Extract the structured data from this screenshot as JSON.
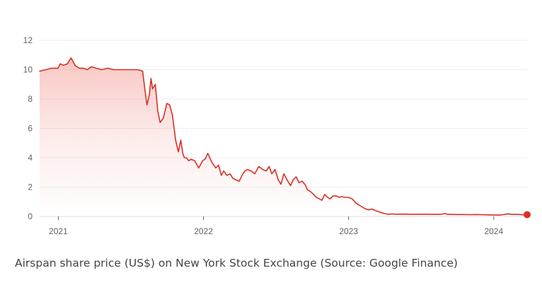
{
  "caption": "Airspan share price (US$) on New York Stock Exchange (Source: Google Finance)",
  "colors": {
    "line": "#d93025",
    "fill_top": "#f4a9a4",
    "gridline": "#ededed",
    "axis": "#dadce0",
    "tick_text": "#5f6368",
    "caption_text": "#444444"
  },
  "chart_data": {
    "type": "area",
    "title": "",
    "xlabel": "",
    "ylabel": "",
    "ylim": [
      0,
      12
    ],
    "yticks": [
      0,
      2,
      4,
      6,
      8,
      10,
      12
    ],
    "ytick_labels": [
      "0",
      "2",
      "4",
      "6",
      "8",
      "10",
      "12"
    ],
    "xlim": [
      "2020-11-15",
      "2024-03-25"
    ],
    "xticks": [
      "2021-01-01",
      "2022-01-01",
      "2023-01-01",
      "2024-01-01"
    ],
    "xtick_labels": [
      "2021",
      "2022",
      "2023",
      "2024"
    ],
    "grid": true,
    "end_marker": true,
    "series": [
      {
        "x": [
          "2020-11-15",
          "2020-12-01",
          "2020-12-15",
          "2020-12-31",
          "2021-01-06",
          "2021-01-14",
          "2021-01-24",
          "2021-02-02",
          "2021-02-12",
          "2021-02-22",
          "2021-03-05",
          "2021-03-15",
          "2021-03-25",
          "2021-04-06",
          "2021-04-20",
          "2021-05-05",
          "2021-05-20",
          "2021-06-05",
          "2021-06-20",
          "2021-07-05",
          "2021-07-20",
          "2021-08-01",
          "2021-08-07",
          "2021-08-12",
          "2021-08-18",
          "2021-08-22",
          "2021-08-26",
          "2021-09-02",
          "2021-09-08",
          "2021-09-14",
          "2021-09-22",
          "2021-10-01",
          "2021-10-08",
          "2021-10-15",
          "2021-10-23",
          "2021-10-30",
          "2021-11-05",
          "2021-11-10",
          "2021-11-14",
          "2021-11-19",
          "2021-11-25",
          "2021-12-01",
          "2021-12-10",
          "2021-12-20",
          "2021-12-30",
          "2022-01-05",
          "2022-01-12",
          "2022-01-22",
          "2022-02-01",
          "2022-02-08",
          "2022-02-15",
          "2022-02-21",
          "2022-03-01",
          "2022-03-09",
          "2022-03-16",
          "2022-03-23",
          "2022-04-01",
          "2022-04-08",
          "2022-04-15",
          "2022-04-22",
          "2022-05-01",
          "2022-05-10",
          "2022-05-20",
          "2022-05-30",
          "2022-06-08",
          "2022-06-15",
          "2022-06-22",
          "2022-06-30",
          "2022-07-08",
          "2022-07-15",
          "2022-07-22",
          "2022-07-30",
          "2022-08-08",
          "2022-08-15",
          "2022-08-22",
          "2022-08-29",
          "2022-09-06",
          "2022-09-13",
          "2022-09-20",
          "2022-09-27",
          "2022-10-05",
          "2022-10-12",
          "2022-10-19",
          "2022-10-26",
          "2022-11-02",
          "2022-11-09",
          "2022-11-16",
          "2022-11-23",
          "2022-12-01",
          "2022-12-08",
          "2022-12-15",
          "2022-12-22",
          "2022-12-31",
          "2023-01-10",
          "2023-01-20",
          "2023-02-01",
          "2023-02-10",
          "2023-02-20",
          "2023-03-01",
          "2023-03-10",
          "2023-03-20",
          "2023-04-01",
          "2023-04-10",
          "2023-04-20",
          "2023-05-01",
          "2023-05-15",
          "2023-06-01",
          "2023-06-15",
          "2023-07-01",
          "2023-07-15",
          "2023-08-01",
          "2023-08-20",
          "2023-09-01",
          "2023-09-05",
          "2023-09-15",
          "2023-10-01",
          "2023-10-15",
          "2023-11-01",
          "2023-11-15",
          "2023-12-01",
          "2023-12-15",
          "2024-01-01",
          "2024-01-15",
          "2024-01-25",
          "2024-02-05",
          "2024-02-15",
          "2024-03-01",
          "2024-03-15",
          "2024-03-25"
        ],
        "y": [
          9.9,
          10.0,
          10.1,
          10.1,
          10.4,
          10.3,
          10.4,
          10.8,
          10.3,
          10.1,
          10.1,
          10.0,
          10.2,
          10.1,
          10.0,
          10.1,
          10.0,
          10.0,
          10.0,
          10.0,
          10.0,
          9.9,
          8.6,
          7.6,
          8.3,
          9.4,
          8.7,
          9.0,
          7.2,
          6.4,
          6.7,
          7.7,
          7.6,
          6.9,
          5.2,
          4.4,
          5.2,
          4.3,
          4.0,
          4.0,
          3.8,
          3.9,
          3.8,
          3.3,
          3.8,
          3.9,
          4.3,
          3.7,
          3.3,
          3.5,
          2.8,
          3.1,
          2.8,
          2.9,
          2.6,
          2.5,
          2.4,
          2.8,
          3.1,
          3.2,
          3.1,
          2.9,
          3.4,
          3.2,
          3.1,
          3.4,
          2.9,
          3.2,
          2.5,
          2.2,
          2.9,
          2.5,
          2.1,
          2.5,
          2.7,
          2.3,
          2.4,
          2.2,
          1.8,
          1.7,
          1.5,
          1.3,
          1.2,
          1.1,
          1.5,
          1.3,
          1.2,
          1.4,
          1.4,
          1.3,
          1.35,
          1.3,
          1.3,
          1.2,
          0.9,
          0.7,
          0.55,
          0.45,
          0.5,
          0.4,
          0.3,
          0.2,
          0.15,
          0.17,
          0.15,
          0.16,
          0.15,
          0.15,
          0.15,
          0.15,
          0.14,
          0.14,
          0.2,
          0.15,
          0.14,
          0.13,
          0.13,
          0.12,
          0.13,
          0.12,
          0.11,
          0.1,
          0.09,
          0.12,
          0.18,
          0.14,
          0.14,
          0.11,
          0.12
        ]
      }
    ]
  }
}
